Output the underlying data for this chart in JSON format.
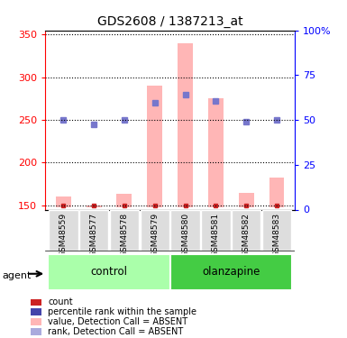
{
  "title": "GDS2608 / 1387213_at",
  "samples": [
    "GSM48559",
    "GSM48577",
    "GSM48578",
    "GSM48579",
    "GSM48580",
    "GSM48581",
    "GSM48582",
    "GSM48583"
  ],
  "pink_bar_values": [
    160,
    150,
    163,
    290,
    340,
    275,
    165,
    183
  ],
  "blue_dot_values": [
    250,
    245,
    250,
    270,
    280,
    272,
    248,
    250
  ],
  "red_dot_values": [
    150,
    150,
    150,
    150,
    150,
    150,
    150,
    150
  ],
  "pink_bar_color": "#FFB6B6",
  "blue_dot_color": "#7777CC",
  "red_dot_color": "#CC2222",
  "ylim_left": [
    145,
    355
  ],
  "ylim_right": [
    0,
    100
  ],
  "yticks_left": [
    150,
    200,
    250,
    300,
    350
  ],
  "yticks_right": [
    0,
    25,
    50,
    75,
    100
  ],
  "groups": [
    {
      "label": "control",
      "start": 0,
      "end": 4,
      "color": "#AAFFAA"
    },
    {
      "label": "olanzapine",
      "start": 4,
      "end": 8,
      "color": "#44CC44"
    }
  ],
  "agent_label": "agent",
  "legend_items": [
    {
      "label": "count",
      "color": "#CC2222"
    },
    {
      "label": "percentile rank within the sample",
      "color": "#4444AA"
    },
    {
      "label": "value, Detection Call = ABSENT",
      "color": "#FFB6B6"
    },
    {
      "label": "rank, Detection Call = ABSENT",
      "color": "#AAAADD"
    }
  ],
  "bar_base": 148,
  "sample_box_color": "#DDDDDD"
}
